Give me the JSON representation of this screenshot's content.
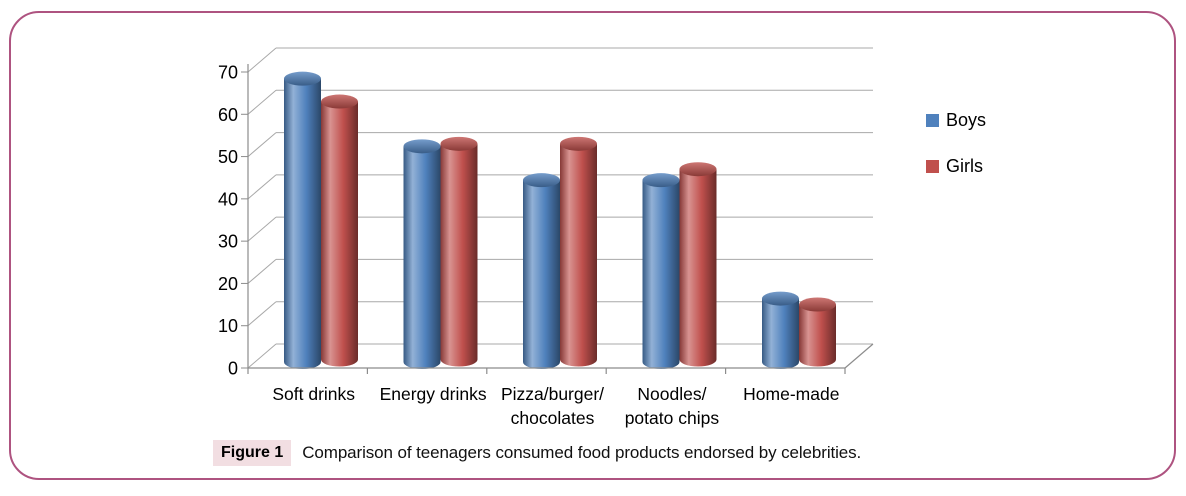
{
  "figure": {
    "caption_label": "Figure 1",
    "caption_text": "Comparison of teenagers consumed food products endorsed by celebrities.",
    "frame_border_color": "#ae5380",
    "caption_label_bg": "#f2dee2"
  },
  "chart_data": {
    "type": "bar",
    "style": "3d-cylinder",
    "title": "",
    "xlabel": "",
    "ylabel": "",
    "categories": [
      "Soft drinks",
      "Energy drinks",
      "Pizza/burger/chocolates",
      "Noodles/potato chips",
      "Home-made"
    ],
    "category_label_lines": [
      [
        "Soft drinks"
      ],
      [
        "Energy drinks"
      ],
      [
        "Pizza/burger/",
        "chocolates"
      ],
      [
        "Noodles/",
        "potato chips"
      ],
      [
        "Home-made"
      ]
    ],
    "series": [
      {
        "name": "Boys",
        "color": "#4F81BD",
        "values": [
          67,
          51,
          43,
          43,
          15
        ]
      },
      {
        "name": "Girls",
        "color": "#C0504D",
        "values": [
          61,
          51,
          51,
          45,
          13
        ]
      }
    ],
    "ylim": [
      0,
      70
    ],
    "y_ticks": [
      0,
      10,
      20,
      30,
      40,
      50,
      60,
      70
    ],
    "grid": true,
    "legend_position": "right",
    "gridline_color": "#a8a8a8",
    "axis_color": "#8c8c8c",
    "text_color": "#000000"
  }
}
